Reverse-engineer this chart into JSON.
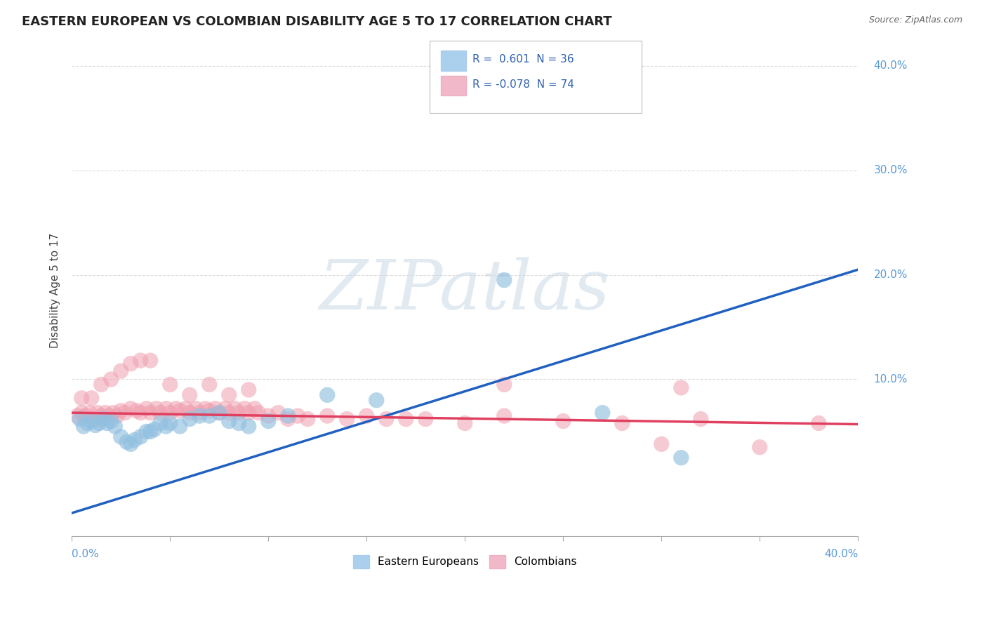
{
  "title": "EASTERN EUROPEAN VS COLOMBIAN DISABILITY AGE 5 TO 17 CORRELATION CHART",
  "source_text": "Source: ZipAtlas.com",
  "ylabel": "Disability Age 5 to 17",
  "ytick_values": [
    0.0,
    0.1,
    0.2,
    0.3,
    0.4
  ],
  "ytick_labels": [
    "",
    "10.0%",
    "20.0%",
    "30.0%",
    "40.0%"
  ],
  "xmin": 0.0,
  "xmax": 0.4,
  "ymin": -0.05,
  "ymax": 0.42,
  "blue_color": "#92c0e0",
  "pink_color": "#f0a0b0",
  "blue_line_color": "#2060c0",
  "pink_line_color": "#e04060",
  "blue_line_y0": -0.028,
  "blue_line_y1": 0.205,
  "pink_line_y0": 0.068,
  "pink_line_y1": 0.057,
  "watermark_text": "ZIPatlas",
  "watermark_color": "#d0dde8",
  "background_color": "#ffffff",
  "grid_color": "#cccccc",
  "axis_label_color": "#5b9bd5",
  "title_color": "#222222",
  "legend_label_color": "#3060b0",
  "legend_r1": "R =  0.601",
  "legend_n1": "N = 36",
  "legend_r2": "R = -0.078",
  "legend_n2": "N = 74",
  "blue_scatter_x": [
    0.004,
    0.006,
    0.008,
    0.01,
    0.012,
    0.014,
    0.016,
    0.018,
    0.02,
    0.022,
    0.025,
    0.028,
    0.03,
    0.032,
    0.035,
    0.038,
    0.04,
    0.042,
    0.045,
    0.048,
    0.05,
    0.055,
    0.06,
    0.065,
    0.07,
    0.075,
    0.08,
    0.085,
    0.09,
    0.1,
    0.11,
    0.13,
    0.155,
    0.27,
    0.31,
    0.22
  ],
  "blue_scatter_y": [
    0.062,
    0.055,
    0.058,
    0.06,
    0.056,
    0.058,
    0.062,
    0.058,
    0.06,
    0.055,
    0.045,
    0.04,
    0.038,
    0.042,
    0.045,
    0.05,
    0.05,
    0.052,
    0.058,
    0.055,
    0.058,
    0.055,
    0.062,
    0.065,
    0.065,
    0.068,
    0.06,
    0.058,
    0.055,
    0.06,
    0.065,
    0.085,
    0.08,
    0.068,
    0.025,
    0.195
  ],
  "pink_scatter_x": [
    0.003,
    0.005,
    0.007,
    0.009,
    0.011,
    0.013,
    0.015,
    0.017,
    0.019,
    0.021,
    0.023,
    0.025,
    0.027,
    0.03,
    0.033,
    0.035,
    0.038,
    0.04,
    0.043,
    0.045,
    0.048,
    0.05,
    0.053,
    0.055,
    0.058,
    0.06,
    0.063,
    0.065,
    0.068,
    0.07,
    0.073,
    0.075,
    0.078,
    0.08,
    0.083,
    0.085,
    0.088,
    0.09,
    0.093,
    0.095,
    0.1,
    0.105,
    0.11,
    0.115,
    0.12,
    0.13,
    0.14,
    0.15,
    0.16,
    0.17,
    0.18,
    0.2,
    0.22,
    0.25,
    0.28,
    0.3,
    0.32,
    0.35,
    0.38,
    0.22,
    0.005,
    0.01,
    0.015,
    0.02,
    0.025,
    0.03,
    0.035,
    0.04,
    0.05,
    0.06,
    0.07,
    0.08,
    0.09,
    0.31
  ],
  "pink_scatter_y": [
    0.065,
    0.068,
    0.065,
    0.068,
    0.062,
    0.068,
    0.065,
    0.068,
    0.065,
    0.068,
    0.065,
    0.07,
    0.068,
    0.072,
    0.07,
    0.068,
    0.072,
    0.068,
    0.072,
    0.068,
    0.072,
    0.068,
    0.072,
    0.07,
    0.072,
    0.068,
    0.072,
    0.068,
    0.072,
    0.07,
    0.072,
    0.068,
    0.072,
    0.068,
    0.072,
    0.068,
    0.072,
    0.068,
    0.072,
    0.068,
    0.065,
    0.068,
    0.062,
    0.065,
    0.062,
    0.065,
    0.062,
    0.065,
    0.062,
    0.062,
    0.062,
    0.058,
    0.065,
    0.06,
    0.058,
    0.038,
    0.062,
    0.035,
    0.058,
    0.095,
    0.082,
    0.082,
    0.095,
    0.1,
    0.108,
    0.115,
    0.118,
    0.118,
    0.095,
    0.085,
    0.095,
    0.085,
    0.09,
    0.092
  ]
}
